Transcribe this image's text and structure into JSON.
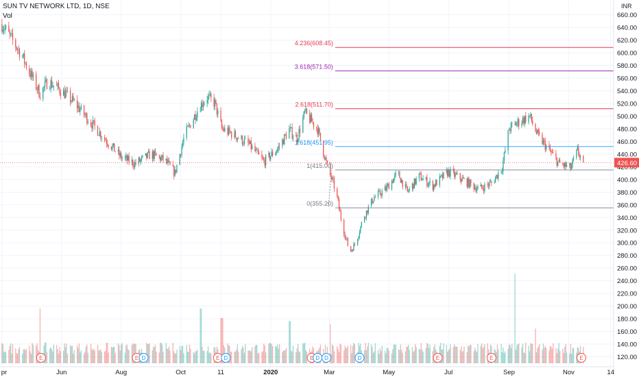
{
  "header": {
    "title": "SUN TV NETWORK LTD, 1D, NSE",
    "volume_label": "Vol",
    "currency": "INR"
  },
  "chart_data": {
    "type": "candlestick",
    "title": "SUN TV NETWORK LTD, 1D, NSE",
    "currency": "INR",
    "ylim": [
      113,
      665
    ],
    "y_ticks": [
      120,
      140,
      160,
      180,
      200,
      220,
      240,
      260,
      280,
      300,
      320,
      340,
      360,
      380,
      400,
      420,
      440,
      460,
      480,
      500,
      520,
      540,
      560,
      580,
      600,
      620,
      640,
      660
    ],
    "y_tick_labels": [
      "120.00",
      "140.00",
      "160.00",
      "180.00",
      "200.00",
      "220.00",
      "240.00",
      "260.00",
      "280.00",
      "300.00",
      "320.00",
      "340.00",
      "360.00",
      "380.00",
      "400.00",
      "420.00",
      "440.00",
      "460.00",
      "480.00",
      "500.00",
      "520.00",
      "540.00",
      "560.00",
      "580.00",
      "600.00",
      "620.00",
      "640.00",
      "660.00"
    ],
    "x_tick_labels": [
      "pr",
      "Jun",
      "Aug",
      "Oct",
      "11",
      "2020",
      "Mar",
      "May",
      "Jul",
      "Sep",
      "Nov",
      "14"
    ],
    "last_price": 426.6,
    "last_price_label": "426.60",
    "price_path": [
      [
        "2019-04-01",
        645
      ],
      [
        "2019-04-20",
        600
      ],
      [
        "2019-05-10",
        535
      ],
      [
        "2019-05-18",
        555
      ],
      [
        "2019-06-01",
        540
      ],
      [
        "2019-06-15",
        520
      ],
      [
        "2019-07-01",
        490
      ],
      [
        "2019-07-15",
        465
      ],
      [
        "2019-08-01",
        435
      ],
      [
        "2019-08-15",
        425
      ],
      [
        "2019-09-01",
        440
      ],
      [
        "2019-09-15",
        430
      ],
      [
        "2019-09-25",
        410
      ],
      [
        "2019-10-05",
        470
      ],
      [
        "2019-10-20",
        515
      ],
      [
        "2019-10-28",
        530
      ],
      [
        "2019-11-05",
        520
      ],
      [
        "2019-11-12",
        480
      ],
      [
        "2019-11-25",
        470
      ],
      [
        "2019-12-10",
        455
      ],
      [
        "2019-12-25",
        428
      ],
      [
        "2020-01-08",
        448
      ],
      [
        "2020-01-20",
        478
      ],
      [
        "2020-01-28",
        465
      ],
      [
        "2020-02-05",
        505
      ],
      [
        "2020-02-18",
        480
      ],
      [
        "2020-02-28",
        420
      ],
      [
        "2020-03-08",
        380
      ],
      [
        "2020-03-14",
        330
      ],
      [
        "2020-03-22",
        285
      ],
      [
        "2020-03-28",
        300
      ],
      [
        "2020-04-05",
        340
      ],
      [
        "2020-04-15",
        370
      ],
      [
        "2020-04-28",
        385
      ],
      [
        "2020-05-10",
        410
      ],
      [
        "2020-05-20",
        380
      ],
      [
        "2020-06-01",
        405
      ],
      [
        "2020-06-15",
        390
      ],
      [
        "2020-07-01",
        412
      ],
      [
        "2020-07-15",
        400
      ],
      [
        "2020-08-01",
        385
      ],
      [
        "2020-08-15",
        395
      ],
      [
        "2020-08-25",
        420
      ],
      [
        "2020-09-01",
        480
      ],
      [
        "2020-09-10",
        490
      ],
      [
        "2020-09-22",
        500
      ],
      [
        "2020-09-30",
        470
      ],
      [
        "2020-10-10",
        450
      ],
      [
        "2020-10-22",
        425
      ],
      [
        "2020-11-03",
        418
      ],
      [
        "2020-11-10",
        445
      ],
      [
        "2020-11-16",
        426.6
      ]
    ],
    "volume_spikes": [
      [
        "2019-05-11",
        200
      ],
      [
        "2019-10-21",
        200
      ],
      [
        "2019-11-12",
        185
      ],
      [
        "2020-01-20",
        180
      ],
      [
        "2020-03-01",
        175
      ],
      [
        "2020-09-06",
        255
      ],
      [
        "2020-09-27",
        168
      ]
    ],
    "fibonacci": [
      {
        "ratio": "4.236",
        "price": 608.45,
        "label": "4.236(608.45)",
        "color": "#e53950"
      },
      {
        "ratio": "3.618",
        "price": 571.5,
        "label": "3.618(571.50)",
        "color": "#9c27b0"
      },
      {
        "ratio": "2.618",
        "price": 511.7,
        "label": "2.618(511.70)",
        "color": "#e53950"
      },
      {
        "ratio": "1.618",
        "price": 451.95,
        "label": "1.618(451.95)",
        "color": "#2196f3"
      },
      {
        "ratio": "1",
        "price": 415.0,
        "label": "1(415.00)",
        "color": "#787b86"
      },
      {
        "ratio": "0",
        "price": 355.2,
        "label": "0(355.20)",
        "color": "#787b86"
      }
    ],
    "events": [
      {
        "date": "2019-05-11",
        "label": "E",
        "kind": "earnings"
      },
      {
        "date": "2019-08-17",
        "label": "E",
        "kind": "earnings"
      },
      {
        "date": "2019-08-24",
        "label": "D",
        "kind": "dividend"
      },
      {
        "date": "2019-11-08",
        "label": "E",
        "kind": "earnings"
      },
      {
        "date": "2019-11-16",
        "label": "D",
        "kind": "dividend"
      },
      {
        "date": "2020-02-12",
        "label": "E",
        "kind": "earnings"
      },
      {
        "date": "2020-02-18",
        "label": "D",
        "kind": "dividend"
      },
      {
        "date": "2020-02-27",
        "label": "D",
        "kind": "dividend"
      },
      {
        "date": "2020-04-01",
        "label": "D",
        "kind": "dividend"
      },
      {
        "date": "2020-06-20",
        "label": "E",
        "kind": "earnings"
      },
      {
        "date": "2020-08-14",
        "label": "E",
        "kind": "earnings"
      },
      {
        "date": "2020-11-14",
        "label": "E",
        "kind": "earnings"
      }
    ]
  },
  "colors": {
    "up": "#26a69a",
    "down": "#ef5350",
    "grid": "#f0f3fa",
    "axis_text": "#131722",
    "price_line": "#ef5350"
  }
}
